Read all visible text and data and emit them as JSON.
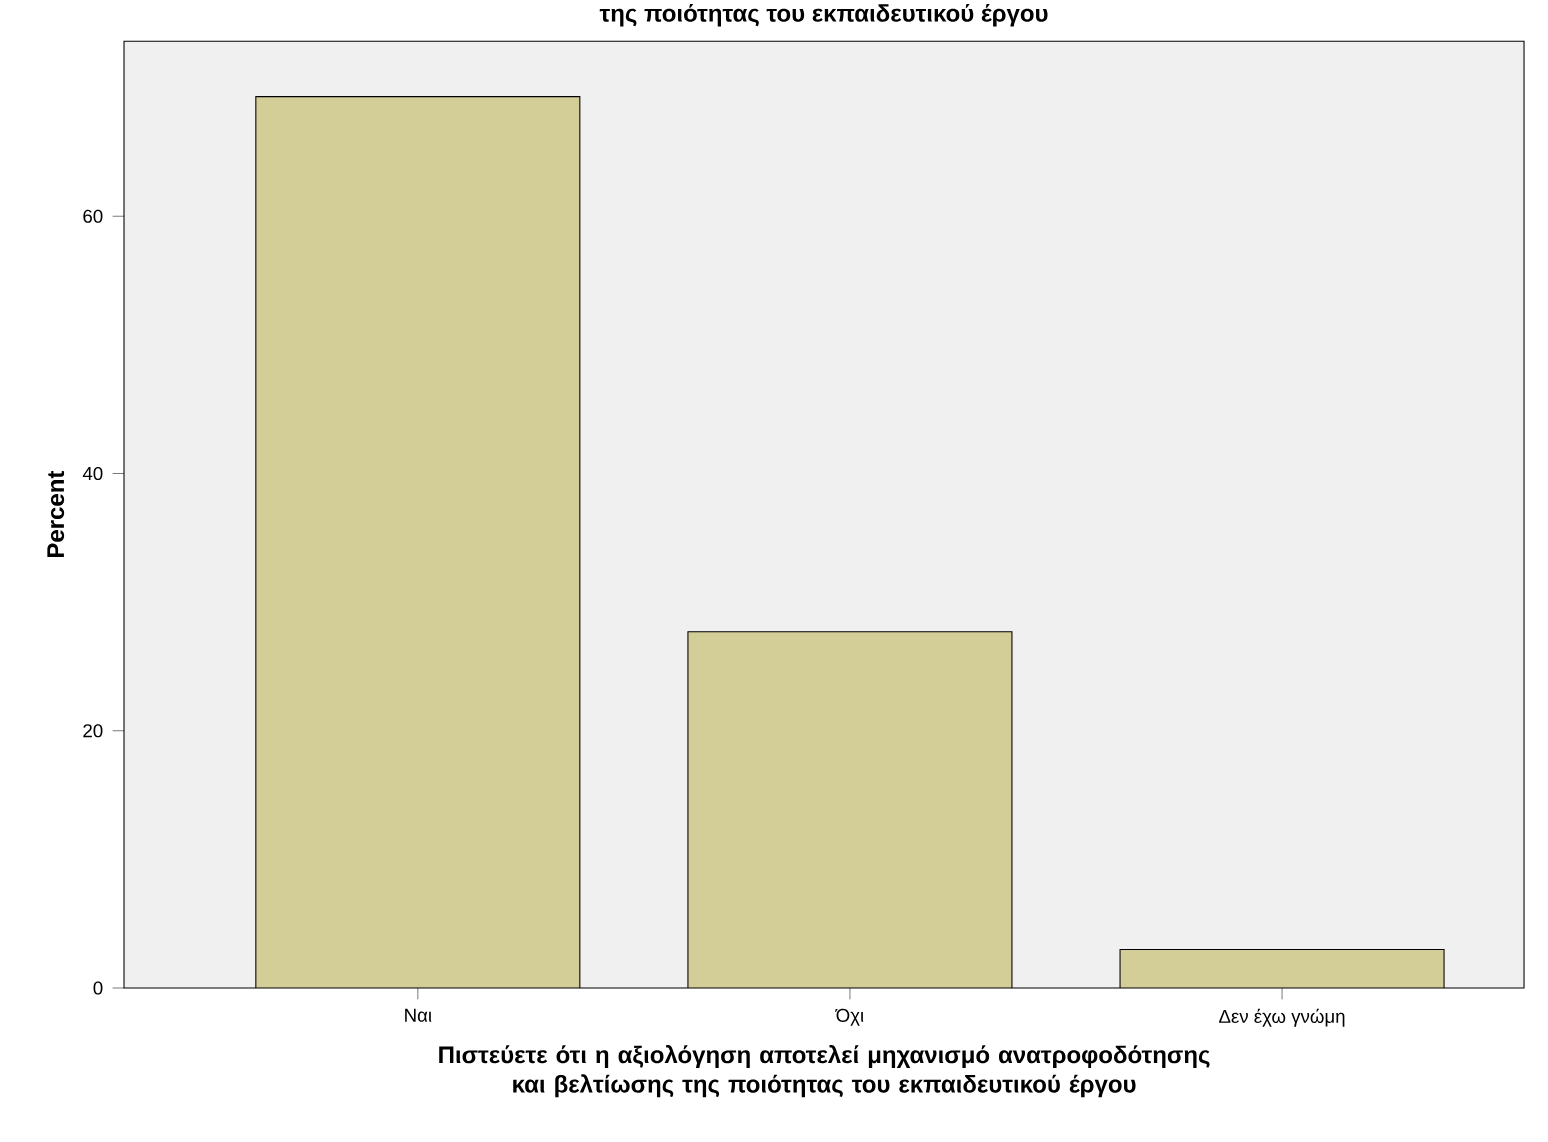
{
  "chart_data": {
    "type": "bar",
    "title": "της ποιότητας του εκπαιδευτικού έργου",
    "xlabel": "Πιστεύετε ότι η αξιολόγηση αποτελεί μηχανισμό ανατροφοδότησης και βελτίωσης της ποιότητας του εκπαιδευτικού έργου",
    "ylabel": "Percent",
    "categories": [
      "Ναι",
      "Όχι",
      "Δεν έχω γνώμη"
    ],
    "values": [
      69.3,
      27.7,
      3.0
    ],
    "color": "#d3ce98",
    "ylim": [
      0,
      73.6
    ],
    "yticks": [
      0,
      20,
      40,
      60
    ],
    "grid": false
  }
}
